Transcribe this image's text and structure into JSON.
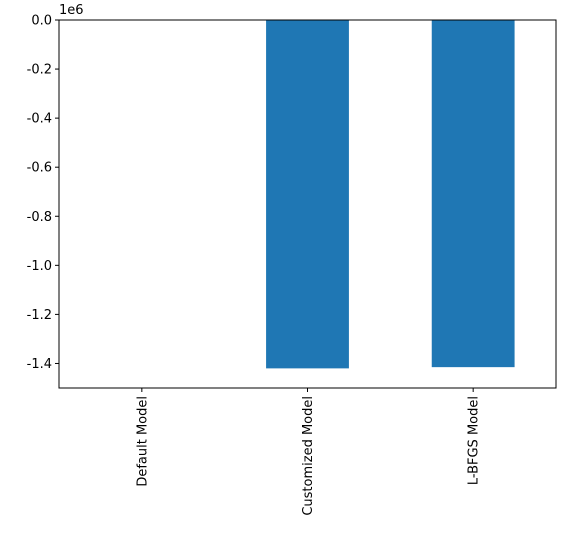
{
  "chart_data": {
    "type": "bar",
    "offset_label": "1e6",
    "categories": [
      "Default Model",
      "Customized Model",
      "L-BFGS Model"
    ],
    "values": [
      0,
      -1.42,
      -1.415
    ],
    "color": "#1f77b4",
    "ylim": [
      -1.5,
      0
    ],
    "yticks": [
      {
        "value": 0,
        "label": "0.0"
      },
      -0.2,
      -0.4,
      -0.6,
      -0.8,
      {
        "value": -1,
        "label": "-1.0"
      },
      -1.2,
      -1.4
    ]
  }
}
